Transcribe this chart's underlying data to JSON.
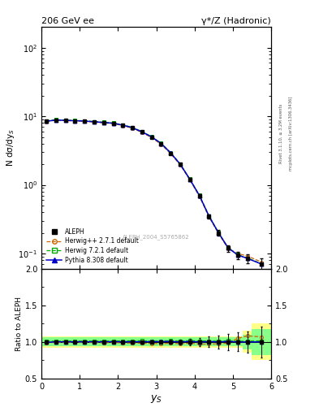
{
  "title_left": "206 GeV ee",
  "title_right": "γ*/Z (Hadronic)",
  "xlabel": "$y_S$",
  "ylabel_main": "N dσ/dy$_S$",
  "ylabel_ratio": "Ratio to ALEPH",
  "watermark": "ALEPH_2004_S5765862",
  "right_label_1": "Rivet 3.1.10, ≥ 3.2M events",
  "right_label_2": "mcplots.cern.ch [arXiv:1306.3436]",
  "xlim": [
    0,
    6.0
  ],
  "ylim_main": [
    0.06,
    200
  ],
  "ylim_ratio": [
    0.5,
    2.0
  ],
  "data_x": [
    0.125,
    0.375,
    0.625,
    0.875,
    1.125,
    1.375,
    1.625,
    1.875,
    2.125,
    2.375,
    2.625,
    2.875,
    3.125,
    3.375,
    3.625,
    3.875,
    4.125,
    4.375,
    4.625,
    4.875,
    5.125,
    5.375,
    5.75
  ],
  "data_y": [
    8.5,
    8.8,
    8.7,
    8.6,
    8.5,
    8.3,
    8.1,
    7.9,
    7.4,
    6.8,
    5.9,
    5.0,
    4.0,
    2.9,
    2.0,
    1.2,
    0.7,
    0.35,
    0.2,
    0.12,
    0.095,
    0.085,
    0.07
  ],
  "data_yerr": [
    0.15,
    0.12,
    0.12,
    0.12,
    0.12,
    0.12,
    0.12,
    0.12,
    0.12,
    0.12,
    0.11,
    0.1,
    0.09,
    0.08,
    0.06,
    0.05,
    0.04,
    0.025,
    0.018,
    0.013,
    0.012,
    0.012,
    0.015
  ],
  "herwig_y": [
    8.4,
    8.75,
    8.65,
    8.55,
    8.45,
    8.25,
    8.0,
    7.85,
    7.3,
    6.7,
    5.8,
    4.9,
    3.9,
    2.85,
    1.95,
    1.18,
    0.68,
    0.34,
    0.195,
    0.118,
    0.1,
    0.092,
    0.075
  ],
  "herwig7_y": [
    8.6,
    8.9,
    8.8,
    8.7,
    8.6,
    8.4,
    8.2,
    8.0,
    7.5,
    6.9,
    6.0,
    5.05,
    4.05,
    2.95,
    2.02,
    1.22,
    0.71,
    0.355,
    0.202,
    0.122,
    0.096,
    0.086,
    0.071
  ],
  "pythia_y": [
    8.45,
    8.82,
    8.72,
    8.62,
    8.52,
    8.32,
    8.12,
    7.92,
    7.42,
    6.82,
    5.92,
    5.02,
    4.02,
    2.92,
    2.0,
    1.21,
    0.7,
    0.352,
    0.2,
    0.121,
    0.095,
    0.085,
    0.07
  ],
  "ratio_herwig": [
    0.99,
    0.994,
    0.994,
    0.994,
    0.994,
    0.994,
    0.988,
    0.994,
    0.986,
    0.985,
    0.983,
    0.98,
    0.975,
    0.983,
    0.975,
    0.983,
    0.971,
    0.971,
    0.975,
    0.983,
    1.05,
    1.082,
    1.07
  ],
  "ratio_herwig7": [
    1.012,
    1.011,
    1.011,
    1.012,
    1.012,
    1.012,
    1.012,
    1.013,
    1.014,
    1.015,
    1.017,
    1.01,
    1.012,
    1.017,
    1.01,
    1.017,
    1.014,
    1.014,
    1.01,
    1.017,
    1.01,
    1.012,
    1.014
  ],
  "ratio_pythia": [
    0.994,
    1.002,
    1.002,
    1.002,
    1.002,
    1.002,
    1.002,
    1.003,
    1.003,
    1.003,
    1.003,
    1.004,
    1.005,
    1.007,
    1.0,
    1.008,
    1.0,
    1.006,
    1.0,
    1.008,
    1.0,
    1.0,
    1.0
  ],
  "herwig_band": [
    0.08,
    0.08,
    0.08,
    0.08,
    0.08,
    0.08,
    0.08,
    0.08,
    0.08,
    0.08,
    0.08,
    0.08,
    0.08,
    0.08,
    0.08,
    0.08,
    0.08,
    0.08,
    0.08,
    0.08,
    0.08,
    0.15,
    0.25
  ],
  "herwig7_band": [
    0.06,
    0.06,
    0.06,
    0.06,
    0.06,
    0.06,
    0.06,
    0.06,
    0.06,
    0.06,
    0.06,
    0.06,
    0.06,
    0.06,
    0.06,
    0.06,
    0.06,
    0.06,
    0.06,
    0.06,
    0.06,
    0.1,
    0.18
  ],
  "bin_widths": [
    0.25,
    0.25,
    0.25,
    0.25,
    0.25,
    0.25,
    0.25,
    0.25,
    0.25,
    0.25,
    0.25,
    0.25,
    0.25,
    0.25,
    0.25,
    0.25,
    0.25,
    0.25,
    0.25,
    0.25,
    0.25,
    0.25,
    0.5
  ],
  "color_data": "#000000",
  "color_herwig": "#cc6600",
  "color_herwig7": "#00aa00",
  "color_pythia": "#0000cc",
  "color_herwig_band": "#ffff88",
  "color_herwig7_band": "#88ff88",
  "legend_entries": [
    "ALEPH",
    "Herwig++ 2.7.1 default",
    "Herwig 7.2.1 default",
    "Pythia 8.308 default"
  ]
}
